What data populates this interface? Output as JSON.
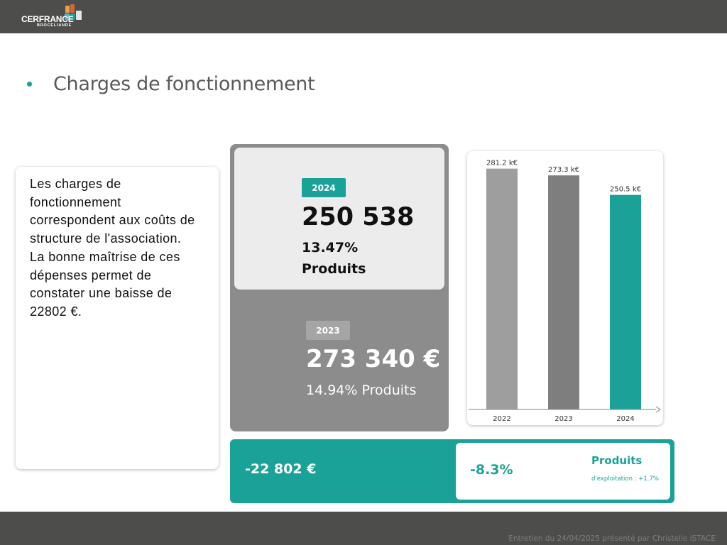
{
  "header": {
    "logo_name": "CERFRANCE",
    "logo_sub": "BROCÉLIANDE"
  },
  "slide": {
    "title": "Charges de fonctionnement"
  },
  "description": {
    "line1": "Les charges de fonctionnement correspondent aux coûts de structure de l'association.",
    "line2": "La bonne maîtrise de ces dépenses permet de constater une baisse de 22802 €."
  },
  "kpi": {
    "current": {
      "year": "2024",
      "value": "250 538",
      "pct": "13.47%",
      "label": "Produits"
    },
    "previous": {
      "year": "2023",
      "value": "273 340 €",
      "pct": "14.94% Produits"
    }
  },
  "chart_data": {
    "type": "bar",
    "categories": [
      "2022",
      "2023",
      "2024"
    ],
    "values": [
      281.2,
      273.3,
      250.5
    ],
    "data_labels": [
      "281.2 k€",
      "273.3 k€",
      "250.5 k€"
    ],
    "unit": "k€",
    "ylim": [
      0,
      290
    ],
    "colors": [
      "#9e9e9e",
      "#7e7e7e",
      "#1aa198"
    ],
    "title": "",
    "xlabel": "",
    "ylabel": ""
  },
  "variation": {
    "amount": "-22 802 €",
    "pct": "-8.3%",
    "label": "Produits",
    "sub": "d'exploitation : +1.7%"
  },
  "footer": {
    "text": "Entretien du 24/04/2025 présenté par Christelle ISTACE"
  },
  "colors": {
    "accent": "#1aa198",
    "bar_dark": "#4d4d4c",
    "panel_grey": "#8c8c8c"
  }
}
